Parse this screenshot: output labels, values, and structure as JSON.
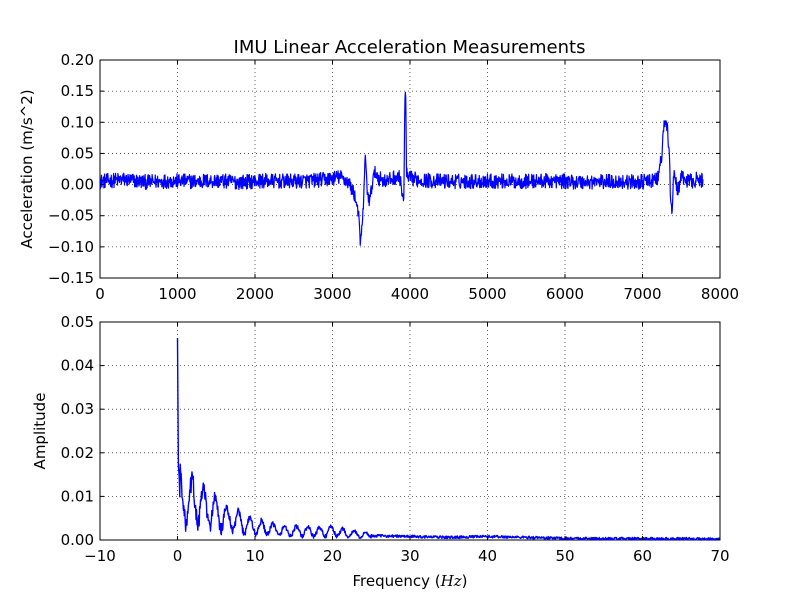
{
  "chart_data": [
    {
      "type": "line",
      "title": "IMU Linear Acceleration Measurements",
      "xlabel": "",
      "ylabel": "Acceleration (m/s^2)",
      "xlim": [
        0,
        8000
      ],
      "ylim": [
        -0.15,
        0.2
      ],
      "grid": true,
      "x_ticks": [
        "0",
        "1000",
        "2000",
        "3000",
        "4000",
        "5000",
        "6000",
        "7000",
        "8000"
      ],
      "y_ticks": [
        "0.20",
        "0.15",
        "0.10",
        "0.05",
        "0.00",
        "−0.05",
        "−0.10",
        "−0.15"
      ],
      "colors": {
        "line": "#0000ff"
      },
      "series": [
        {
          "x": [
            0,
            300,
            600,
            900,
            1200,
            1500,
            1800,
            2100,
            2400,
            2700,
            2900,
            3100,
            3200,
            3280,
            3330,
            3360,
            3390,
            3420,
            3450,
            3480,
            3520,
            3560,
            3600,
            3700,
            3800,
            3880,
            3900,
            3920,
            3935,
            3945,
            3955,
            3970,
            4000,
            4100,
            4300,
            4600,
            5000,
            5400,
            5800,
            6200,
            6600,
            6900,
            7100,
            7200,
            7250,
            7280,
            7300,
            7320,
            7340,
            7360,
            7380,
            7400,
            7450,
            7500,
            7600,
            7700,
            7780
          ],
          "y": [
            0.005,
            0.008,
            0.004,
            0.006,
            0.005,
            0.006,
            0.004,
            0.006,
            0.005,
            0.006,
            0.008,
            0.012,
            0.005,
            -0.015,
            -0.04,
            -0.095,
            -0.06,
            0.045,
            -0.01,
            -0.03,
            0.01,
            0.02,
            0.01,
            0.005,
            0.012,
            0.01,
            -0.02,
            -0.03,
            0.15,
            0.14,
            0.02,
            0.008,
            0.01,
            0.008,
            0.006,
            0.005,
            0.006,
            0.005,
            0.006,
            0.004,
            0.005,
            0.004,
            0.005,
            0.01,
            0.05,
            0.095,
            0.105,
            0.09,
            0.06,
            -0.01,
            -0.05,
            0.02,
            -0.01,
            0.01,
            0.005,
            0.008,
            0.006
          ]
        }
      ]
    },
    {
      "type": "line",
      "title": "",
      "xlabel": "Frequency (Hz)",
      "xlabel_main": "Frequency (",
      "xlabel_unit": "Hz",
      "xlabel_close": ")",
      "ylabel": "Amplitude",
      "xlim": [
        -10,
        70
      ],
      "ylim": [
        0,
        0.05
      ],
      "grid": true,
      "x_ticks": [
        "−10",
        "0",
        "10",
        "20",
        "30",
        "40",
        "50",
        "60",
        "70"
      ],
      "y_ticks": [
        "0.05",
        "0.04",
        "0.03",
        "0.02",
        "0.01",
        "0.00"
      ],
      "colors": {
        "line": "#0000ff"
      },
      "series": [
        {
          "x": [
            0,
            0.05,
            0.2,
            0.5,
            1,
            2,
            3,
            4,
            5,
            6,
            7,
            8,
            9,
            10,
            12,
            14,
            16,
            18,
            20,
            22,
            25,
            30,
            35,
            40,
            45,
            50,
            55,
            60,
            65,
            70
          ],
          "y": [
            0.046,
            0.03,
            0.012,
            0.009,
            0.008,
            0.009,
            0.008,
            0.007,
            0.006,
            0.005,
            0.0045,
            0.004,
            0.0035,
            0.003,
            0.0025,
            0.002,
            0.002,
            0.0018,
            0.002,
            0.0015,
            0.001,
            0.0008,
            0.0006,
            0.0008,
            0.0006,
            0.0004,
            0.0003,
            0.0003,
            0.0003,
            0.0002
          ]
        }
      ]
    }
  ]
}
